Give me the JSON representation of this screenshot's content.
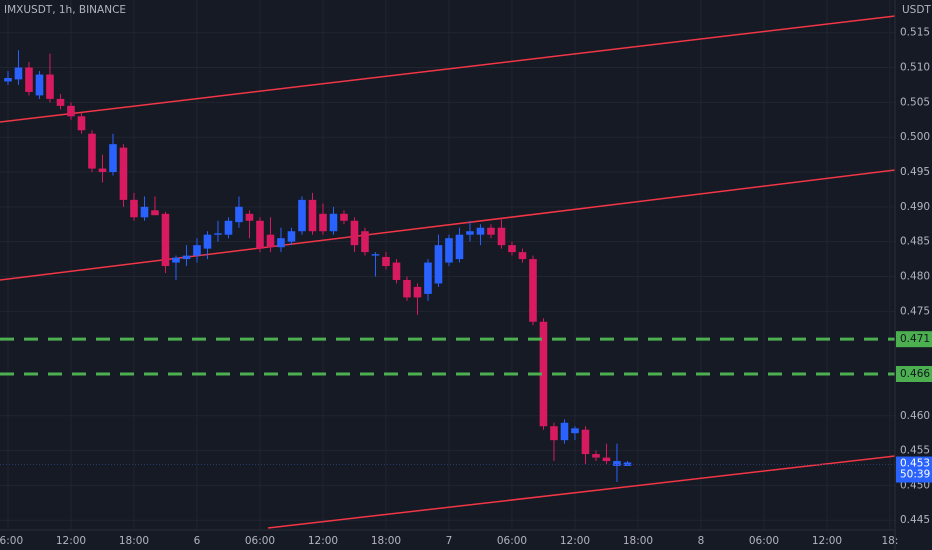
{
  "chart_data": {
    "type": "candlestick",
    "title": "IMXUSDT, 1h, BINANCE",
    "y_axis_label": "USDT",
    "x": [
      6,
      7,
      8,
      9,
      10,
      11,
      12,
      13,
      14,
      15,
      16,
      17,
      18,
      19,
      20,
      21,
      22,
      23,
      24,
      25,
      26,
      27,
      28,
      29,
      30,
      31,
      32,
      33,
      34,
      35,
      36,
      37,
      38,
      39,
      40,
      41,
      42,
      43,
      44,
      45,
      46,
      47,
      48,
      49,
      50,
      51,
      52,
      53,
      54,
      55,
      56,
      57,
      58,
      59,
      60,
      61,
      62,
      63,
      64,
      65
    ],
    "open": [
      0.508,
      0.5083,
      0.51,
      0.506,
      0.509,
      0.5055,
      0.5045,
      0.503,
      0.5005,
      0.4955,
      0.495,
      0.4985,
      0.491,
      0.4885,
      0.4895,
      0.489,
      0.482,
      0.4825,
      0.483,
      0.484,
      0.486,
      0.486,
      0.4878,
      0.489,
      0.488,
      0.486,
      0.4842,
      0.485,
      0.4865,
      0.491,
      0.489,
      0.4865,
      0.489,
      0.488,
      0.4865,
      0.483,
      0.4828,
      0.482,
      0.4795,
      0.4785,
      0.4775,
      0.479,
      0.482,
      0.4825,
      0.486,
      0.486,
      0.487,
      0.487,
      0.4845,
      0.4835,
      0.4825,
      0.4735,
      0.4585,
      0.4565,
      0.4575,
      0.458,
      0.4545,
      0.454,
      0.4528,
      0.4528
    ],
    "high": [
      0.5095,
      0.5125,
      0.5108,
      0.5095,
      0.512,
      0.5062,
      0.505,
      0.5035,
      0.501,
      0.4975,
      0.5005,
      0.499,
      0.492,
      0.4915,
      0.4915,
      0.4893,
      0.483,
      0.4845,
      0.4855,
      0.4865,
      0.488,
      0.4885,
      0.4915,
      0.4895,
      0.4885,
      0.4885,
      0.487,
      0.487,
      0.4915,
      0.492,
      0.4905,
      0.49,
      0.4895,
      0.4885,
      0.487,
      0.4835,
      0.4835,
      0.4825,
      0.48,
      0.479,
      0.4825,
      0.486,
      0.486,
      0.487,
      0.488,
      0.4875,
      0.4875,
      0.4885,
      0.485,
      0.484,
      0.483,
      0.474,
      0.459,
      0.4595,
      0.4585,
      0.4585,
      0.455,
      0.456,
      0.456,
      0.4535
    ],
    "low": [
      0.5075,
      0.5075,
      0.506,
      0.5055,
      0.505,
      0.504,
      0.5025,
      0.5005,
      0.495,
      0.4935,
      0.4945,
      0.49,
      0.488,
      0.488,
      0.489,
      0.4805,
      0.4795,
      0.4815,
      0.482,
      0.4825,
      0.485,
      0.4855,
      0.487,
      0.4855,
      0.4835,
      0.4835,
      0.4835,
      0.4845,
      0.486,
      0.486,
      0.486,
      0.486,
      0.4875,
      0.4835,
      0.483,
      0.48,
      0.481,
      0.479,
      0.4765,
      0.4745,
      0.4765,
      0.4785,
      0.4815,
      0.482,
      0.485,
      0.4845,
      0.4855,
      0.484,
      0.483,
      0.482,
      0.473,
      0.458,
      0.4535,
      0.456,
      0.4565,
      0.453,
      0.4535,
      0.453,
      0.4505,
      0.4528
    ],
    "close": [
      0.5085,
      0.51,
      0.5065,
      0.509,
      0.5055,
      0.5045,
      0.503,
      0.501,
      0.4955,
      0.495,
      0.499,
      0.491,
      0.4885,
      0.49,
      0.4888,
      0.4815,
      0.4827,
      0.483,
      0.4845,
      0.486,
      0.4862,
      0.488,
      0.49,
      0.488,
      0.484,
      0.4842,
      0.4855,
      0.4865,
      0.491,
      0.4865,
      0.4865,
      0.489,
      0.488,
      0.4845,
      0.4835,
      0.4832,
      0.4815,
      0.4795,
      0.477,
      0.477,
      0.482,
      0.4845,
      0.4855,
      0.486,
      0.4865,
      0.487,
      0.486,
      0.4845,
      0.4835,
      0.4825,
      0.4735,
      0.4585,
      0.4565,
      0.459,
      0.4582,
      0.4545,
      0.454,
      0.4535,
      0.4535,
      0.4533
    ],
    "up_color": "#2962ff",
    "down_color": "#d81b60",
    "xlim": [
      5.24,
      90.48
    ],
    "xticks": [
      {
        "value": 6,
        "label": "06:00"
      },
      {
        "value": 12,
        "label": "12:00"
      },
      {
        "value": 18,
        "label": "18:00"
      },
      {
        "value": 24,
        "label": "6"
      },
      {
        "value": 30,
        "label": "06:00"
      },
      {
        "value": 36,
        "label": "12:00"
      },
      {
        "value": 42,
        "label": "18:00"
      },
      {
        "value": 48,
        "label": "7"
      },
      {
        "value": 54,
        "label": "06:00"
      },
      {
        "value": 60,
        "label": "12:00"
      },
      {
        "value": 66,
        "label": "18:00"
      },
      {
        "value": 72,
        "label": "8"
      },
      {
        "value": 78,
        "label": "06:00"
      },
      {
        "value": 84,
        "label": "12:00"
      },
      {
        "value": 90,
        "label": "18:"
      }
    ],
    "ylim": [
      0.4436,
      0.5197
    ],
    "yticks": [
      0.515,
      {
        "value": 0.51,
        "label": "0.510"
      },
      0.505,
      {
        "value": 0.5,
        "label": "0.500"
      },
      0.495,
      {
        "value": 0.49,
        "label": "0.490"
      },
      0.485,
      {
        "value": 0.48,
        "label": "0.480"
      },
      0.475,
      {
        "value": 0.46,
        "label": "0.460"
      },
      0.455,
      {
        "value": 0.45,
        "label": "0.450"
      },
      0.445
    ],
    "grid": true,
    "levels": [
      0.471,
      0.466
    ],
    "level_color": "#4caf50",
    "last_price": 0.453,
    "countdown": "50:39",
    "last_price_color": "#2962ff"
  }
}
